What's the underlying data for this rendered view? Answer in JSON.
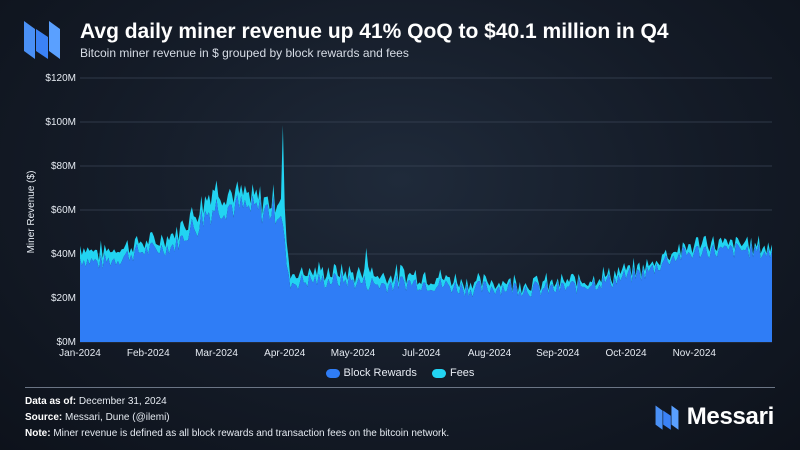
{
  "header": {
    "title": "Avg daily miner revenue up 41% QoQ to $40.1 million in Q4",
    "subtitle": "Bitcoin miner revenue in $ grouped by block rewards and fees"
  },
  "colors": {
    "block_rewards": "#2f7df6",
    "fees": "#22d4f2",
    "grid": "#3a4556",
    "brand": "#3b82f6"
  },
  "chart_data": {
    "type": "area",
    "title": "Avg daily miner revenue up 41% QoQ to $40.1 million in Q4",
    "ylabel": "Miner Revenue ($)",
    "xlabel": "",
    "ylim": [
      0,
      120000000
    ],
    "yticks": [
      0,
      20000000,
      40000000,
      60000000,
      80000000,
      100000000,
      120000000
    ],
    "ytick_labels": [
      "$0M",
      "$20M",
      "$40M",
      "$60M",
      "$80M",
      "$100M",
      "$120M"
    ],
    "xtick_labels": [
      "Jan-2024",
      "Feb-2024",
      "Mar-2024",
      "Apr-2024",
      "May-2024",
      "Jul-2024",
      "Aug-2024",
      "Sep-2024",
      "Oct-2024",
      "Nov-2024"
    ],
    "xtick_days": [
      0,
      36,
      72,
      108,
      144,
      180,
      216,
      252,
      288,
      324
    ],
    "grid": true,
    "legend_position": "bottom-center",
    "stacked": true,
    "day_count": 366,
    "series": [
      {
        "name": "Block Rewards",
        "anchors": [
          [
            0,
            38
          ],
          [
            10,
            36
          ],
          [
            20,
            38
          ],
          [
            30,
            41
          ],
          [
            40,
            42
          ],
          [
            50,
            44
          ],
          [
            60,
            52
          ],
          [
            66,
            58
          ],
          [
            72,
            62
          ],
          [
            80,
            62
          ],
          [
            90,
            60
          ],
          [
            100,
            60
          ],
          [
            106,
            60
          ],
          [
            108,
            44
          ],
          [
            110,
            28
          ],
          [
            112,
            27
          ],
          [
            120,
            28
          ],
          [
            130,
            28
          ],
          [
            140,
            28
          ],
          [
            150,
            27
          ],
          [
            160,
            26
          ],
          [
            170,
            27
          ],
          [
            180,
            27
          ],
          [
            190,
            26
          ],
          [
            200,
            25
          ],
          [
            210,
            24
          ],
          [
            220,
            25
          ],
          [
            230,
            25
          ],
          [
            240,
            24
          ],
          [
            250,
            24
          ],
          [
            260,
            25
          ],
          [
            270,
            27
          ],
          [
            280,
            28
          ],
          [
            290,
            30
          ],
          [
            300,
            32
          ],
          [
            310,
            38
          ],
          [
            320,
            40
          ],
          [
            330,
            42
          ],
          [
            340,
            41
          ],
          [
            350,
            42
          ],
          [
            360,
            41
          ],
          [
            366,
            40
          ]
        ]
      },
      {
        "name": "Fees",
        "anchors": [
          [
            0,
            5
          ],
          [
            20,
            4
          ],
          [
            40,
            3
          ],
          [
            60,
            6
          ],
          [
            70,
            8
          ],
          [
            80,
            5
          ],
          [
            100,
            4
          ],
          [
            106,
            6
          ],
          [
            107,
            45
          ],
          [
            108,
            15
          ],
          [
            110,
            6
          ],
          [
            112,
            4
          ],
          [
            140,
            3
          ],
          [
            150,
            3
          ],
          [
            151,
            18
          ],
          [
            153,
            4
          ],
          [
            180,
            3
          ],
          [
            220,
            2
          ],
          [
            260,
            2
          ],
          [
            300,
            2
          ],
          [
            330,
            3
          ],
          [
            366,
            2
          ]
        ]
      }
    ]
  },
  "legend": {
    "items": [
      {
        "label": "Block Rewards"
      },
      {
        "label": "Fees"
      }
    ]
  },
  "footer": {
    "data_as_of_label": "Data as of:",
    "data_as_of_value": "December 31, 2024",
    "source_label": "Source:",
    "source_value": "Messari, Dune (@ilemi)",
    "note_label": "Note:",
    "note_value": "Miner revenue is defined as all block rewards and transaction fees on the bitcoin network."
  },
  "brand": {
    "name": "Messari",
    "logo_icon": "messari-logo-icon"
  }
}
